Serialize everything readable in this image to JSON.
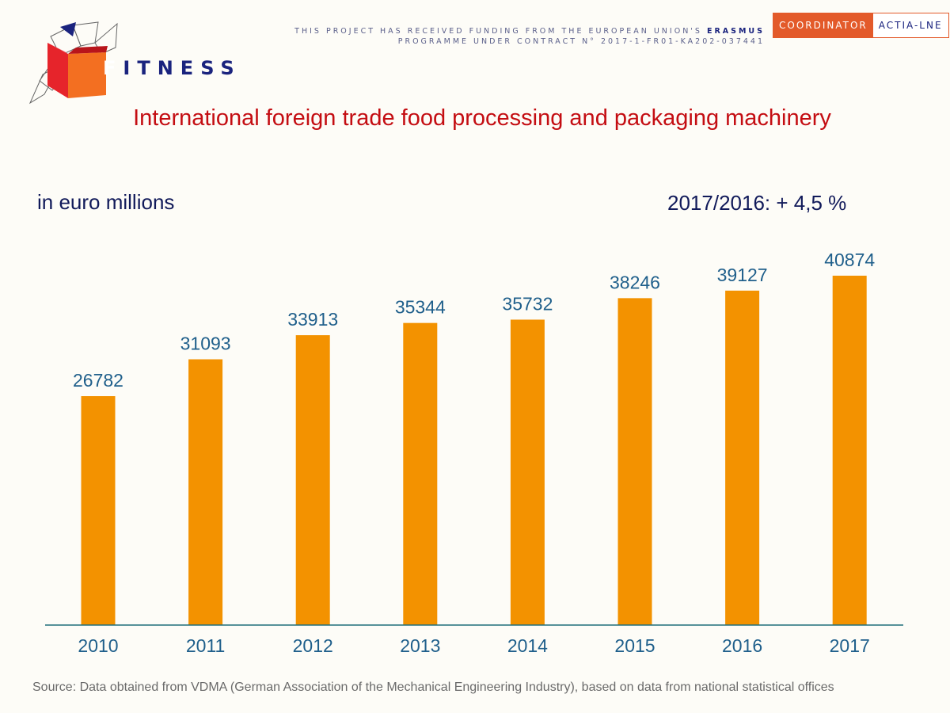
{
  "header": {
    "brand": "FITNESS",
    "brand_initial": "F",
    "brand_rest": "ITNESS",
    "funding_line1_prefix": "THIS PROJECT HAS RECEIVED FUNDING FROM THE EUROPEAN UNION'S",
    "funding_line1_bold": "ERASMUS",
    "funding_line2": "PROGRAMME UNDER CONTRACT N° 2017-1-FR01-KA202-037441",
    "coordinator_label": "COORDINATOR",
    "coordinator_name": "ACTIA-LNE"
  },
  "colors": {
    "bar": "#f39200",
    "title": "#c40d12",
    "labels": "#1f5f8b",
    "axis": "#1f6e7a",
    "brand": "#1a237e"
  },
  "icons": {
    "logo": "open-book-papers-logo"
  },
  "chart_data": {
    "type": "bar",
    "title": "International foreign trade food processing and packaging machinery",
    "ylabel": "in euro millions",
    "annotation": "2017/2016: + 4,5 %",
    "categories": [
      "2010",
      "2011",
      "2012",
      "2013",
      "2014",
      "2015",
      "2016",
      "2017"
    ],
    "values": [
      26782,
      31093,
      33913,
      35344,
      35732,
      38246,
      39127,
      40874
    ],
    "data_labels": true,
    "grid": false,
    "ylim": [
      0,
      43000
    ]
  },
  "footer": {
    "source": "Source: Data obtained from VDMA (German Association of the Mechanical Engineering Industry), based on data from national statistical offices"
  }
}
